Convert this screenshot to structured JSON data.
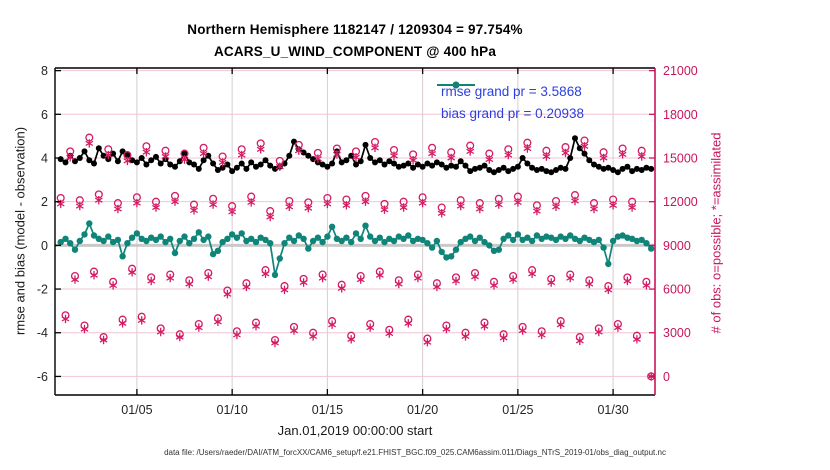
{
  "header": {
    "title_line1": "Northern Hemisphere 1182147 / 1209304 = 97.754%",
    "title_line2": "ACARS_U_WIND_COMPONENT @ 400 hPa"
  },
  "legend": {
    "rmse_label": "rmse grand pr = 3.5868",
    "bias_label": "bias grand pr = 0.20938",
    "text_color": "#2a3fe0"
  },
  "footer": {
    "data_file": "data file: /Users/raeder/DAI/ATM_forcXX/CAM6_setup/f.e21.FHIST_BGC.f09_025.CAM6assim.011/Diags_NTrS_2019-01/obs_diag_output.nc"
  },
  "chart_data": {
    "type": "line",
    "title": "Northern Hemisphere 1182147 / 1209304 = 97.754%",
    "subtitle": "ACARS_U_WIND_COMPONENT @ 400 hPa",
    "xlabel": "Jan.01,2019 00:00:00 start",
    "ylabel_left": "rmse and bias (model - observation)",
    "ylabel_right": "# of obs: o=possible; *=assimilated",
    "rmse_grand": 3.5868,
    "bias_grand": 0.20938,
    "x_start_day": 1.0,
    "x_step_days": 0.25,
    "xlim": [
      0.7,
      32.2
    ],
    "ylim_left": [
      -6.85,
      8.12
    ],
    "ylim_right": [
      0,
      21000
    ],
    "counts_per_left_unit": 1500,
    "xticks": {
      "days": [
        5,
        10,
        15,
        20,
        25,
        30
      ],
      "labels": [
        "01/05",
        "01/10",
        "01/15",
        "01/20",
        "01/25",
        "01/30"
      ]
    },
    "yticks_left": [
      -6,
      -4,
      -2,
      0,
      2,
      4,
      6,
      8
    ],
    "yticks_right": [
      0,
      3000,
      6000,
      9000,
      12000,
      15000,
      18000,
      21000
    ],
    "colors": {
      "rmse": "#000000",
      "bias": "#0f8579",
      "obs": "#d41b63",
      "right_axis": "#c9155c",
      "grid_h": "#f0c4d4",
      "grid_v": "#d6cdd1",
      "zero_line": "#c9c9c9",
      "axis": "#000000",
      "tick_text": "#262626"
    },
    "series": [
      {
        "name": "rmse",
        "axis": "left",
        "marker": "dot",
        "values": [
          3.95,
          3.8,
          4.1,
          3.85,
          4.0,
          4.3,
          3.9,
          3.75,
          4.45,
          4.1,
          3.95,
          4.2,
          3.85,
          4.3,
          4.15,
          3.9,
          3.8,
          4.0,
          3.7,
          3.9,
          4.05,
          3.75,
          3.95,
          3.7,
          3.6,
          3.85,
          4.2,
          3.8,
          3.7,
          3.5,
          3.9,
          4.1,
          3.75,
          3.45,
          3.55,
          3.7,
          3.4,
          3.55,
          3.75,
          3.5,
          3.8,
          3.6,
          3.7,
          3.9,
          3.65,
          3.5,
          3.6,
          3.75,
          4.1,
          4.75,
          4.4,
          4.25,
          4.1,
          3.95,
          3.8,
          3.7,
          3.6,
          3.75,
          4.3,
          3.8,
          3.9,
          4.1,
          3.7,
          3.85,
          4.6,
          4.0,
          3.8,
          3.9,
          3.7,
          3.85,
          3.75,
          3.6,
          3.65,
          3.75,
          3.55,
          3.7,
          3.6,
          3.75,
          3.65,
          3.8,
          3.7,
          3.55,
          3.65,
          3.6,
          3.85,
          3.65,
          3.4,
          3.5,
          3.55,
          3.65,
          3.45,
          3.35,
          3.45,
          3.55,
          3.4,
          3.5,
          3.6,
          4.0,
          3.75,
          3.55,
          3.45,
          3.5,
          3.4,
          3.35,
          3.45,
          3.55,
          3.5,
          4.0,
          4.9,
          4.45,
          4.2,
          3.9,
          3.7,
          3.6,
          3.5,
          3.55,
          3.45,
          3.35,
          3.5,
          3.6,
          3.4,
          3.5,
          3.45,
          3.55,
          3.5
        ]
      },
      {
        "name": "bias",
        "axis": "left",
        "marker": "dot",
        "values": [
          0.15,
          0.3,
          0.1,
          -0.2,
          0.2,
          0.5,
          1.0,
          0.45,
          0.3,
          0.2,
          0.4,
          0.15,
          0.25,
          -0.5,
          0.1,
          0.35,
          0.55,
          0.3,
          0.2,
          0.35,
          0.25,
          0.4,
          0.15,
          0.3,
          -0.35,
          0.2,
          0.4,
          0.1,
          0.3,
          0.6,
          0.25,
          0.4,
          -0.4,
          -0.25,
          0.15,
          0.3,
          0.5,
          0.35,
          0.55,
          0.2,
          0.3,
          0.15,
          0.35,
          0.25,
          0.1,
          -1.35,
          -0.6,
          0.1,
          0.35,
          0.2,
          0.45,
          0.3,
          -0.15,
          0.2,
          0.35,
          0.15,
          0.4,
          0.85,
          0.3,
          0.2,
          0.35,
          0.15,
          0.55,
          0.3,
          0.9,
          0.4,
          0.2,
          0.35,
          0.15,
          0.3,
          0.2,
          0.4,
          0.3,
          0.45,
          0.2,
          0.3,
          0.25,
          0.1,
          -0.1,
          0.2,
          -0.3,
          -0.55,
          -0.5,
          -0.2,
          0.15,
          0.3,
          0.4,
          0.2,
          0.35,
          0.15,
          0.0,
          -0.25,
          -0.2,
          0.3,
          0.45,
          0.25,
          0.5,
          0.25,
          0.35,
          0.2,
          0.45,
          0.3,
          0.4,
          0.35,
          0.25,
          0.4,
          0.3,
          0.45,
          0.3,
          0.2,
          0.35,
          0.25,
          0.15,
          0.25,
          -0.1,
          -0.85,
          0.2,
          0.4,
          0.45,
          0.35,
          0.3,
          0.2,
          0.25,
          0.1,
          -0.15
        ]
      },
      {
        "name": "possible",
        "axis": "right",
        "marker": "circle",
        "values": [
          12250,
          4200,
          15450,
          6900,
          12100,
          3500,
          16400,
          7200,
          12500,
          2700,
          15600,
          6500,
          11900,
          3900,
          15200,
          7400,
          12300,
          4100,
          15800,
          6800,
          12000,
          3300,
          15500,
          7000,
          12400,
          2900,
          15300,
          6600,
          11800,
          3600,
          15700,
          7100,
          12200,
          4000,
          15100,
          5900,
          11700,
          3100,
          15600,
          6400,
          12350,
          3700,
          16000,
          7300,
          11350,
          2500,
          14800,
          6200,
          12050,
          3400,
          15900,
          6700,
          11950,
          3000,
          15350,
          7000,
          12250,
          3800,
          15650,
          6300,
          12150,
          2800,
          15450,
          6900,
          12400,
          3600,
          16100,
          7200,
          11850,
          3200,
          15550,
          6600,
          12000,
          3900,
          15250,
          7000,
          12300,
          2600,
          15700,
          6400,
          11600,
          3500,
          15400,
          6800,
          12100,
          3000,
          15850,
          7100,
          11900,
          3700,
          15300,
          6500,
          12200,
          2900,
          15600,
          6900,
          12350,
          3400,
          16050,
          7300,
          11750,
          3100,
          15500,
          6700,
          12050,
          3800,
          15750,
          7000,
          12450,
          2700,
          16200,
          6600,
          11900,
          3300,
          15400,
          6200,
          12150,
          3600,
          15650,
          6800,
          12000,
          2800,
          15500,
          6500,
          0
        ]
      },
      {
        "name": "assimilated",
        "axis": "right",
        "marker": "asterisk",
        "values": [
          11850,
          3950,
          15050,
          6650,
          11700,
          3250,
          16000,
          6950,
          12100,
          2500,
          15200,
          6250,
          11500,
          3650,
          14800,
          7150,
          11900,
          3850,
          15400,
          6550,
          11600,
          3050,
          15100,
          6750,
          12000,
          2700,
          14900,
          6350,
          11400,
          3350,
          15300,
          6850,
          11800,
          3750,
          14700,
          5650,
          11300,
          2850,
          15200,
          6150,
          11950,
          3450,
          15600,
          7050,
          10950,
          2300,
          14400,
          5950,
          11650,
          3150,
          15500,
          6450,
          11550,
          2750,
          14950,
          6750,
          11850,
          3550,
          15250,
          6050,
          11750,
          2550,
          15050,
          6650,
          12000,
          3350,
          15700,
          6950,
          11450,
          2950,
          15150,
          6350,
          11600,
          3650,
          14850,
          6750,
          11900,
          2350,
          15300,
          6150,
          11200,
          3250,
          15000,
          6550,
          11700,
          2750,
          15450,
          6850,
          11500,
          3450,
          14900,
          6250,
          11800,
          2650,
          15200,
          6650,
          11950,
          3150,
          15650,
          7050,
          11350,
          2850,
          15100,
          6450,
          11650,
          3550,
          15350,
          6750,
          12050,
          2450,
          15800,
          6350,
          11500,
          3050,
          15000,
          5950,
          11750,
          3350,
          15250,
          6550,
          11600,
          2550,
          15100,
          6250,
          0
        ]
      }
    ],
    "layout": {
      "plot": {
        "l": 55,
        "r": 655,
        "t": 68,
        "b": 395
      },
      "grid": true,
      "legend_position": "top-right-inside"
    }
  }
}
